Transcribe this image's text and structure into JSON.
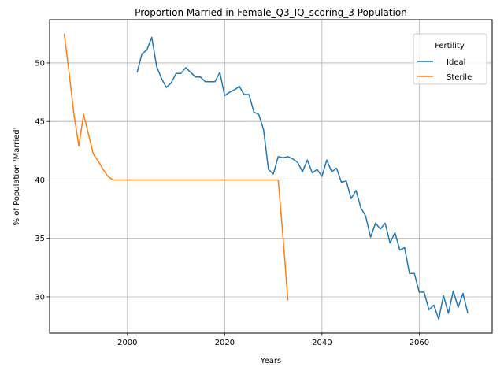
{
  "chart_data": {
    "type": "line",
    "title": "Proportion Married in Female_Q3_IQ_scoring_3 Population",
    "xlabel": "Years",
    "ylabel": "% of Population 'Married'",
    "xlim": [
      1984,
      2075
    ],
    "ylim": [
      26.9,
      53.7
    ],
    "xticks": [
      2000,
      2020,
      2040,
      2060
    ],
    "yticks": [
      30,
      35,
      40,
      45,
      50
    ],
    "grid": true,
    "legend": {
      "title": "Fertility",
      "placement": "top-right"
    },
    "series": [
      {
        "name": "Ideal",
        "color": "#1f77b4",
        "x": [
          2002,
          2003,
          2004,
          2005,
          2006,
          2007,
          2008,
          2009,
          2010,
          2011,
          2012,
          2013,
          2014,
          2015,
          2016,
          2017,
          2018,
          2019,
          2020,
          2021,
          2022,
          2023,
          2024,
          2025,
          2026,
          2027,
          2028,
          2029,
          2030,
          2031,
          2032,
          2033,
          2034,
          2035,
          2036,
          2037,
          2038,
          2039,
          2040,
          2041,
          2042,
          2043,
          2044,
          2045,
          2046,
          2047,
          2048,
          2049,
          2050,
          2051,
          2052,
          2053,
          2054,
          2055,
          2056,
          2057,
          2058,
          2059,
          2060,
          2061,
          2062,
          2063,
          2064,
          2065,
          2066,
          2067,
          2068,
          2069,
          2070
        ],
        "y": [
          49.2,
          50.8,
          51.1,
          52.2,
          49.7,
          48.7,
          47.9,
          48.3,
          49.1,
          49.1,
          49.6,
          49.2,
          48.8,
          48.8,
          48.4,
          48.4,
          48.4,
          49.2,
          47.2,
          47.5,
          47.7,
          48.0,
          47.3,
          47.3,
          45.8,
          45.6,
          44.3,
          40.9,
          40.5,
          42.0,
          41.9,
          42.0,
          41.8,
          41.5,
          40.7,
          41.7,
          40.6,
          40.9,
          40.3,
          41.7,
          40.7,
          41.0,
          39.8,
          39.9,
          38.4,
          39.1,
          37.6,
          36.9,
          35.1,
          36.3,
          35.8,
          36.3,
          34.6,
          35.5,
          34.0,
          34.2,
          32.0,
          32.0,
          30.4,
          30.4,
          28.9,
          29.3,
          28.1,
          30.1,
          28.6,
          30.5,
          29.1,
          30.3,
          28.6
        ]
      },
      {
        "name": "Sterile",
        "color": "#ff7f0e",
        "x": [
          1987,
          1988,
          1989,
          1990,
          1991,
          1992,
          1993,
          1994,
          1995,
          1996,
          1997,
          2031,
          2032,
          2033
        ],
        "y": [
          52.5,
          49.2,
          45.6,
          42.9,
          45.6,
          43.9,
          42.2,
          41.6,
          40.9,
          40.3,
          40.0,
          40.0,
          35.1,
          29.7
        ]
      }
    ]
  }
}
